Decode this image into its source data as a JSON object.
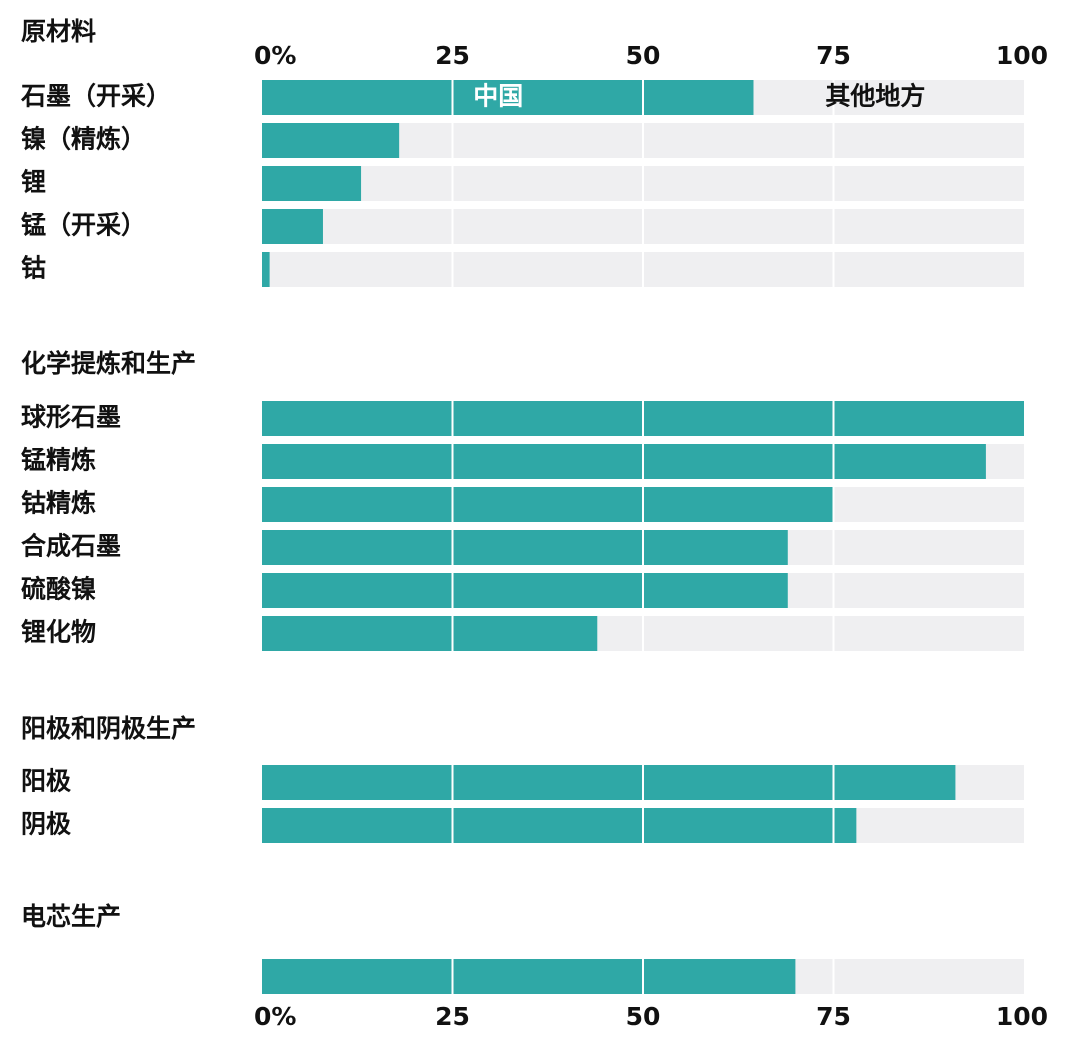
{
  "chart_data": {
    "type": "bar",
    "orientation": "horizontal",
    "stacked": true,
    "xlim": [
      0,
      100
    ],
    "tick_labels_top": [
      "0%",
      "25",
      "50",
      "75",
      "100"
    ],
    "tick_labels_bottom": [
      "0%",
      "25",
      "50",
      "75",
      "100"
    ],
    "legend": {
      "china_label": "中国",
      "rest_label": "其他地方"
    },
    "colors": {
      "china": "#2fa8a6",
      "rest": "#efeff1",
      "gridline": "#ffffff",
      "text": "#111111"
    },
    "groups": [
      {
        "title": "原材料",
        "rows": [
          {
            "label": "石墨（开采）",
            "value": 64.5
          },
          {
            "label": "镍（精炼）",
            "value": 18
          },
          {
            "label": "锂",
            "value": 13
          },
          {
            "label": "锰（开采）",
            "value": 8
          },
          {
            "label": "钴",
            "value": 1
          }
        ]
      },
      {
        "title": "化学提炼和生产",
        "rows": [
          {
            "label": "球形石墨",
            "value": 100
          },
          {
            "label": "锰精炼",
            "value": 95
          },
          {
            "label": "钴精炼",
            "value": 75
          },
          {
            "label": "合成石墨",
            "value": 69
          },
          {
            "label": "硫酸镍",
            "value": 69
          },
          {
            "label": "锂化物",
            "value": 44
          }
        ]
      },
      {
        "title": "阳极和阴极生产",
        "rows": [
          {
            "label": "阳极",
            "value": 91
          },
          {
            "label": "阴极",
            "value": 78
          }
        ]
      },
      {
        "title": "电芯生产",
        "rows": [
          {
            "label": "",
            "value": 70
          }
        ]
      }
    ]
  }
}
